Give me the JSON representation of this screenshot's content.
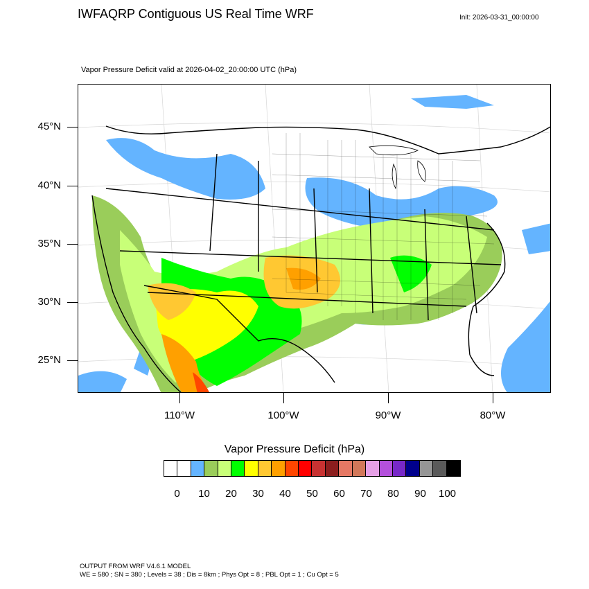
{
  "header": {
    "title": "IWFAQRP Contiguous US Real Time WRF",
    "init": "Init: 2026-03-31_00:00:00"
  },
  "map": {
    "subtitle": "Vapor Pressure Deficit valid at 2026-04-02_20:00:00 UTC   (hPa)",
    "lat_labels": [
      "45°N",
      "40°N",
      "35°N",
      "30°N",
      "25°N"
    ],
    "lon_labels": [
      "110°W",
      "100°W",
      "90°W",
      "80°W"
    ]
  },
  "colorbar": {
    "title": "Vapor Pressure Deficit  (hPa)",
    "colors": [
      "#ffffff",
      "#ffffff",
      "#64b4ff",
      "#9acd5a",
      "#c8ff78",
      "#00ff00",
      "#ffff00",
      "#ffc832",
      "#ffa000",
      "#ff4600",
      "#ff0000",
      "#c83232",
      "#8c1e1e",
      "#e67864",
      "#d2785a",
      "#e6a0e6",
      "#b450dc",
      "#7828c8",
      "#00008c",
      "#969696",
      "#5a5a5a",
      "#000000"
    ],
    "labels": [
      "0",
      "10",
      "20",
      "30",
      "40",
      "50",
      "60",
      "70",
      "80",
      "90",
      "100"
    ]
  },
  "footer": {
    "line1": "OUTPUT FROM WRF V4.6.1 MODEL",
    "line2": "WE = 580 ; SN = 380 ; Levels = 38 ; Dis = 8km ; Phys Opt = 8 ; PBL Opt = 1 ; Cu Opt = 5"
  }
}
